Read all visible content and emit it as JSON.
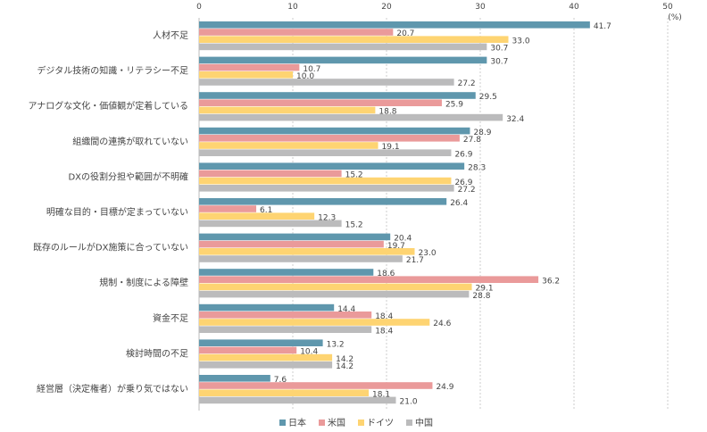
{
  "chart_data": {
    "type": "bar",
    "orientation": "horizontal",
    "unit": "(%)",
    "xlim": [
      0,
      50
    ],
    "ticks": [
      0,
      10,
      20,
      30,
      40,
      50
    ],
    "grid": true,
    "legend_placement": "bottom",
    "categories": [
      "人材不足",
      "デジタル技術の知識・リテラシー不足",
      "アナログな文化・価値観が定着している",
      "組織間の連携が取れていない",
      "DXの役割分担や範囲が不明確",
      "明確な目的・目標が定まっていない",
      "既存のルールがDX施策に合っていない",
      "規制・制度による障壁",
      "資金不足",
      "検討時間の不足",
      "経営層（決定権者）が乗り気ではない"
    ],
    "series": [
      {
        "name": "日本",
        "color": "#5f97ad",
        "values": [
          41.7,
          30.7,
          29.5,
          28.9,
          28.3,
          26.4,
          20.4,
          18.6,
          14.4,
          13.2,
          7.6
        ]
      },
      {
        "name": "米国",
        "color": "#ea9a9a",
        "values": [
          20.7,
          10.7,
          25.9,
          27.8,
          15.2,
          6.1,
          19.7,
          36.2,
          18.4,
          10.4,
          24.9
        ]
      },
      {
        "name": "ドイツ",
        "color": "#fed472",
        "values": [
          33.0,
          10.0,
          18.8,
          19.1,
          26.9,
          12.3,
          23.0,
          29.1,
          24.6,
          14.2,
          18.1
        ]
      },
      {
        "name": "中国",
        "color": "#bbbbbc",
        "values": [
          30.7,
          27.2,
          32.4,
          26.9,
          27.2,
          15.2,
          21.7,
          28.8,
          18.4,
          14.2,
          21.0
        ]
      }
    ]
  }
}
